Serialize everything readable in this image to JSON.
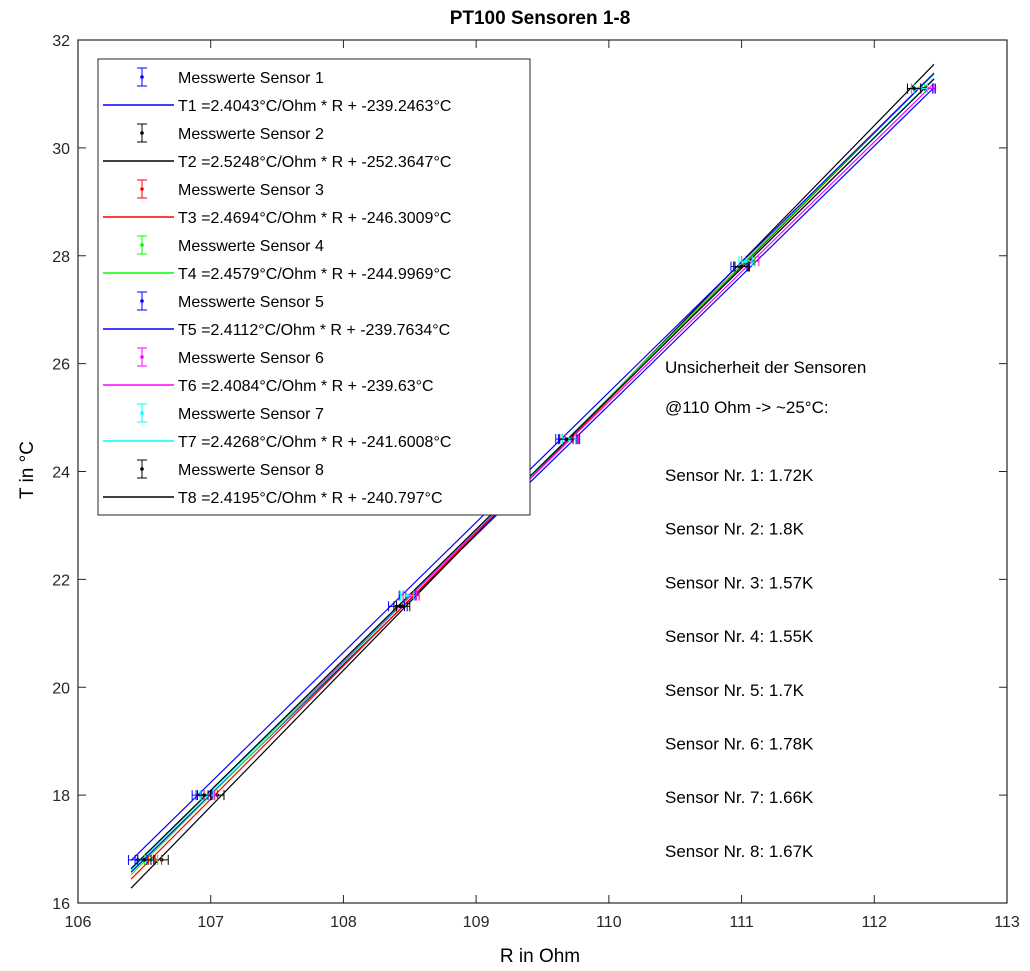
{
  "chart_data": {
    "type": "line",
    "title": "PT100 Sensoren 1-8",
    "xlabel": "R in Ohm",
    "ylabel": "T in °C",
    "xlim": [
      106,
      113
    ],
    "ylim": [
      16,
      32
    ],
    "xticks": [
      106,
      107,
      108,
      109,
      110,
      111,
      112,
      113
    ],
    "yticks": [
      16,
      18,
      20,
      22,
      24,
      26,
      28,
      30,
      32
    ],
    "grid": false,
    "legend_position": "top-left",
    "series": [
      {
        "name": "Messwerte Sensor 1",
        "fit_label": "T1 =2.4043°C/Ohm * R + -239.2463°C",
        "slope": 2.4043,
        "intercept": -239.2463,
        "color": "#0000ff",
        "points": [
          {
            "x": 106.45,
            "y": 16.8,
            "xerr": 0.07
          },
          {
            "x": 106.92,
            "y": 18.0,
            "xerr": 0.06
          },
          {
            "x": 108.4,
            "y": 21.5,
            "xerr": 0.06
          },
          {
            "x": 109.7,
            "y": 24.6,
            "xerr": 0.08
          },
          {
            "x": 110.98,
            "y": 27.8,
            "xerr": 0.06
          },
          {
            "x": 112.36,
            "y": 31.1,
            "xerr": 0.08
          }
        ]
      },
      {
        "name": "Messwerte Sensor 2",
        "fit_label": "T2 =2.5248°C/Ohm * R + -252.3647°C",
        "slope": 2.5248,
        "intercept": -252.3647,
        "color": "#000000",
        "points": [
          {
            "x": 106.63,
            "y": 16.8,
            "xerr": 0.05
          },
          {
            "x": 107.05,
            "y": 18.0,
            "xerr": 0.05
          },
          {
            "x": 108.45,
            "y": 21.5,
            "xerr": 0.05
          },
          {
            "x": 109.7,
            "y": 24.6,
            "xerr": 0.05
          },
          {
            "x": 111.0,
            "y": 27.8,
            "xerr": 0.05
          },
          {
            "x": 112.3,
            "y": 31.1,
            "xerr": 0.05
          }
        ]
      },
      {
        "name": "Messwerte Sensor 3",
        "fit_label": "T3 =2.4694°C/Ohm * R + -246.3009°C",
        "slope": 2.4694,
        "intercept": -246.3009,
        "color": "#ff0000",
        "points": [
          {
            "x": 106.58,
            "y": 16.8,
            "xerr": 0.05
          },
          {
            "x": 107.0,
            "y": 18.0,
            "xerr": 0.05
          },
          {
            "x": 108.52,
            "y": 21.7,
            "xerr": 0.05
          },
          {
            "x": 109.72,
            "y": 24.6,
            "xerr": 0.05
          },
          {
            "x": 111.05,
            "y": 27.9,
            "xerr": 0.05
          },
          {
            "x": 112.35,
            "y": 31.1,
            "xerr": 0.05
          }
        ]
      },
      {
        "name": "Messwerte Sensor 4",
        "fit_label": "T4 =2.4579°C/Ohm * R + -244.9969°C",
        "slope": 2.4579,
        "intercept": -244.9969,
        "color": "#00ff00",
        "points": [
          {
            "x": 106.55,
            "y": 16.8,
            "xerr": 0.05
          },
          {
            "x": 106.98,
            "y": 18.0,
            "xerr": 0.05
          },
          {
            "x": 108.5,
            "y": 21.7,
            "xerr": 0.05
          },
          {
            "x": 109.7,
            "y": 24.6,
            "xerr": 0.05
          },
          {
            "x": 111.05,
            "y": 27.9,
            "xerr": 0.05
          },
          {
            "x": 112.33,
            "y": 31.1,
            "xerr": 0.05
          }
        ]
      },
      {
        "name": "Messwerte Sensor 5",
        "fit_label": "T5 =2.4112°C/Ohm * R + -239.7634°C",
        "slope": 2.4112,
        "intercept": -239.7634,
        "color": "#0000ff",
        "points": [
          {
            "x": 106.5,
            "y": 16.8,
            "xerr": 0.07
          },
          {
            "x": 106.95,
            "y": 18.0,
            "xerr": 0.06
          },
          {
            "x": 108.48,
            "y": 21.7,
            "xerr": 0.06
          },
          {
            "x": 109.68,
            "y": 24.6,
            "xerr": 0.08
          },
          {
            "x": 111.0,
            "y": 27.8,
            "xerr": 0.06
          },
          {
            "x": 112.38,
            "y": 31.1,
            "xerr": 0.08
          }
        ]
      },
      {
        "name": "Messwerte Sensor 6",
        "fit_label": "T6 =2.4084°C/Ohm * R + -239.63°C",
        "slope": 2.4084,
        "intercept": -239.63,
        "color": "#ff00ff",
        "points": [
          {
            "x": 106.5,
            "y": 16.8,
            "xerr": 0.05
          },
          {
            "x": 106.98,
            "y": 18.0,
            "xerr": 0.05
          },
          {
            "x": 108.5,
            "y": 21.7,
            "xerr": 0.05
          },
          {
            "x": 109.72,
            "y": 24.6,
            "xerr": 0.05
          },
          {
            "x": 111.08,
            "y": 27.9,
            "xerr": 0.05
          },
          {
            "x": 112.4,
            "y": 31.1,
            "xerr": 0.05
          }
        ]
      },
      {
        "name": "Messwerte Sensor 7",
        "fit_label": "T7 =2.4268°C/Ohm * R + -241.6008°C",
        "slope": 2.4268,
        "intercept": -241.6008,
        "color": "#00ffff",
        "points": [
          {
            "x": 106.5,
            "y": 16.8,
            "xerr": 0.05
          },
          {
            "x": 106.97,
            "y": 18.0,
            "xerr": 0.05
          },
          {
            "x": 108.48,
            "y": 21.7,
            "xerr": 0.05
          },
          {
            "x": 109.7,
            "y": 24.6,
            "xerr": 0.05
          },
          {
            "x": 111.03,
            "y": 27.9,
            "xerr": 0.05
          },
          {
            "x": 112.35,
            "y": 31.1,
            "xerr": 0.05
          }
        ]
      },
      {
        "name": "Messwerte Sensor 8",
        "fit_label": "T8 =2.4195°C/Ohm * R + -240.797°C",
        "slope": 2.4195,
        "intercept": -240.797,
        "color": "#000000",
        "points": [
          {
            "x": 106.5,
            "y": 16.8,
            "xerr": 0.05
          },
          {
            "x": 106.95,
            "y": 18.0,
            "xerr": 0.05
          },
          {
            "x": 108.43,
            "y": 21.5,
            "xerr": 0.05
          },
          {
            "x": 109.68,
            "y": 24.6,
            "xerr": 0.05
          },
          {
            "x": 111.0,
            "y": 27.8,
            "xerr": 0.05
          },
          {
            "x": 112.3,
            "y": 31.1,
            "xerr": 0.05
          }
        ]
      }
    ],
    "annotations": {
      "heading_lines": [
        "Unsicherheit der Sensoren",
        "@110 Ohm -> ~25°C:"
      ],
      "items": [
        "Sensor Nr. 1: 1.72K",
        "Sensor Nr. 2: 1.8K",
        "Sensor Nr. 3: 1.57K",
        "Sensor Nr. 4: 1.55K",
        "Sensor Nr. 5: 1.7K",
        "Sensor Nr. 6: 1.78K",
        "Sensor Nr. 7: 1.66K",
        "Sensor Nr. 8: 1.67K"
      ]
    }
  }
}
